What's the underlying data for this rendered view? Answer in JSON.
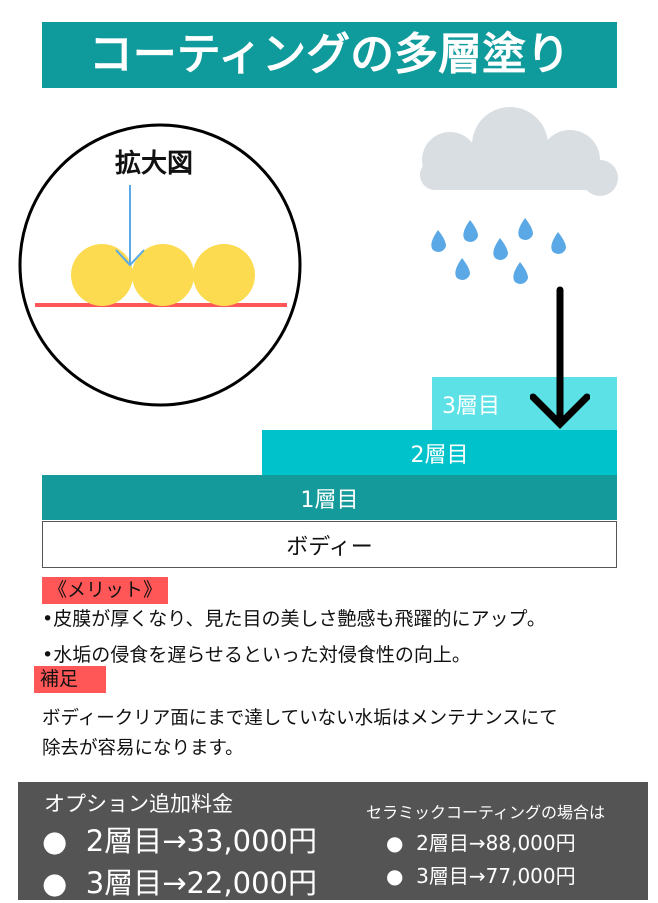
{
  "title": "コーティングの多層塗り",
  "diagram": {
    "zoom_label": "拡大図",
    "layers": [
      "3層目",
      "2層目",
      "1層目"
    ],
    "body_label": "ボディー",
    "colors": {
      "title": "#0f9a9c",
      "layer1": "#159a9c",
      "layer2": "#00c2cb",
      "layer3": "#5ce1e6",
      "particles": "#fddb50",
      "surface_line": "#ff5757",
      "rain": "#5aa9e6",
      "cloud": "#d9dee3"
    }
  },
  "merit": {
    "label": "《メリット》",
    "items": [
      "•皮膜が厚くなり、見た目の美しさ艶感も飛躍的にアップ。",
      "•水垢の侵食を遅らせるといった対侵食性の向上。"
    ]
  },
  "note": {
    "label": "補足",
    "lines": [
      "ボディークリア面にまで達していない水垢はメンテナンスにて",
      "除去が容易になります。"
    ]
  },
  "pricing": {
    "title": "オプション追加料金",
    "items": [
      "2層目→33,000円",
      "3層目→22,000円"
    ],
    "ceramic_title": "セラミックコーティングの場合は",
    "ceramic_items": [
      "2層目→88,000円",
      "3層目→77,000円"
    ]
  }
}
